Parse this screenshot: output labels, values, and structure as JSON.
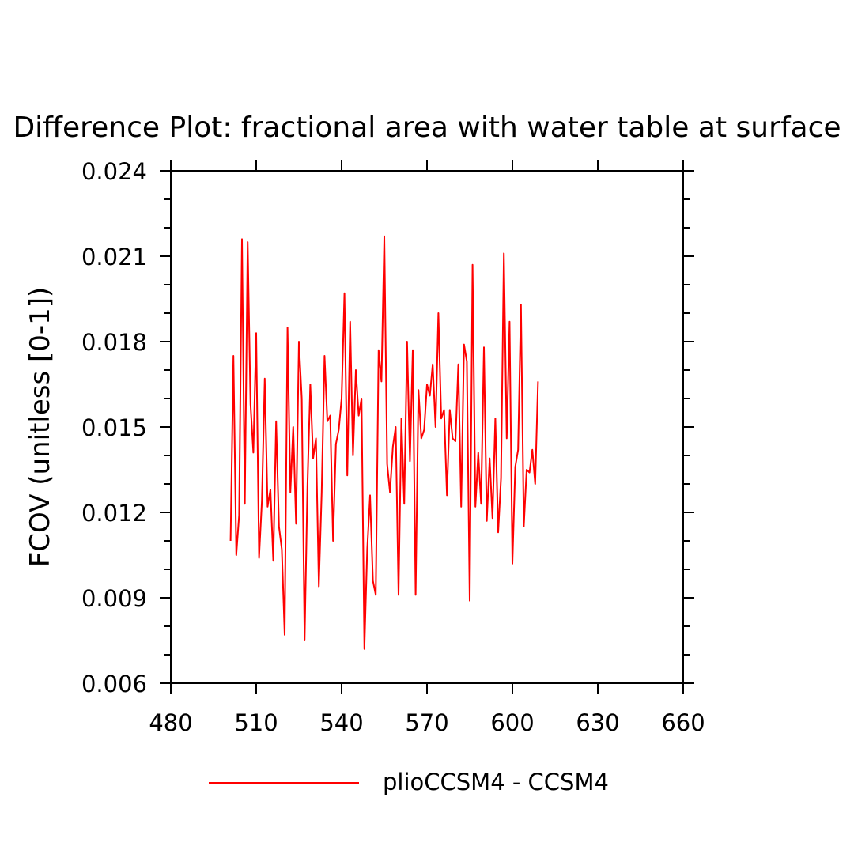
{
  "chart_data": {
    "type": "line",
    "title": "Difference Plot: fractional area with water table at surface",
    "xlabel": "",
    "ylabel": "FCOV  (unitless [0-1])",
    "xlim": [
      480,
      660
    ],
    "ylim": [
      0.006,
      0.024
    ],
    "x_ticks": [
      480,
      510,
      540,
      570,
      600,
      630,
      660
    ],
    "y_ticks": [
      0.006,
      0.009,
      0.012,
      0.015,
      0.018,
      0.021,
      0.024
    ],
    "x_tick_labels": [
      "480",
      "510",
      "540",
      "570",
      "600",
      "630",
      "660"
    ],
    "y_tick_labels": [
      "0.006",
      "0.009",
      "0.012",
      "0.015",
      "0.018",
      "0.021",
      "0.024"
    ],
    "grid": false,
    "legend_position": "bottom",
    "series": [
      {
        "name": "plioCCSM4 - CCSM4",
        "color": "#ff0000",
        "x_start": 501,
        "x_step": 1,
        "values": [
          0.011,
          0.0175,
          0.0105,
          0.0119,
          0.0216,
          0.0123,
          0.0215,
          0.0158,
          0.0141,
          0.0183,
          0.0104,
          0.0124,
          0.0167,
          0.0122,
          0.0128,
          0.0103,
          0.0152,
          0.0115,
          0.0107,
          0.0077,
          0.0185,
          0.0127,
          0.015,
          0.0116,
          0.018,
          0.016,
          0.0075,
          0.0129,
          0.0165,
          0.0139,
          0.0146,
          0.0094,
          0.0127,
          0.0175,
          0.0152,
          0.0154,
          0.011,
          0.0144,
          0.0149,
          0.016,
          0.0197,
          0.0133,
          0.0187,
          0.014,
          0.017,
          0.0154,
          0.016,
          0.0072,
          0.0107,
          0.0126,
          0.0096,
          0.0091,
          0.0177,
          0.0166,
          0.0217,
          0.0137,
          0.0127,
          0.0143,
          0.015,
          0.0091,
          0.0153,
          0.0123,
          0.018,
          0.0138,
          0.0177,
          0.0091,
          0.0163,
          0.0146,
          0.0149,
          0.0165,
          0.0161,
          0.0172,
          0.015,
          0.019,
          0.0153,
          0.0156,
          0.0126,
          0.0156,
          0.0146,
          0.0145,
          0.0172,
          0.0122,
          0.0179,
          0.0173,
          0.0089,
          0.0207,
          0.0122,
          0.0141,
          0.0123,
          0.0178,
          0.0117,
          0.0139,
          0.0118,
          0.0153,
          0.0113,
          0.0132,
          0.0211,
          0.0146,
          0.0187,
          0.0102,
          0.0136,
          0.0142,
          0.0193,
          0.0115,
          0.0135,
          0.0134,
          0.0142,
          0.013,
          0.0166
        ]
      }
    ]
  }
}
